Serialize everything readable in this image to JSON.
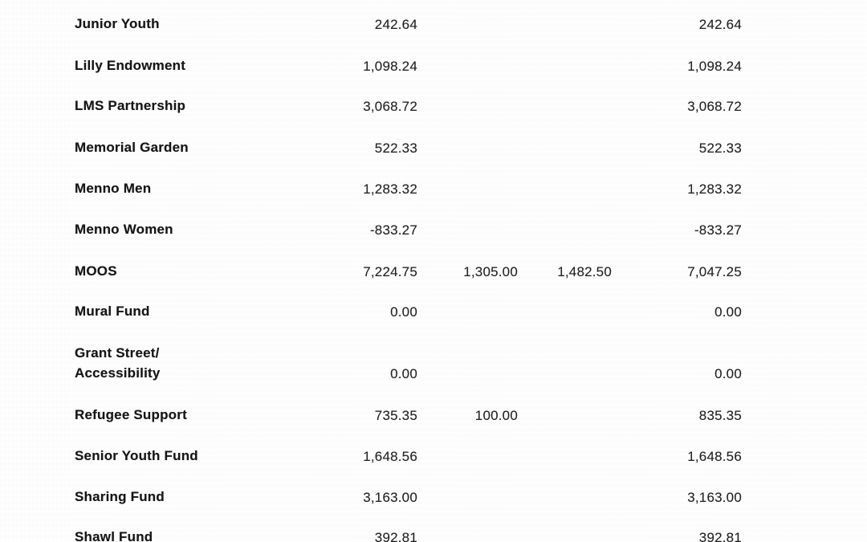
{
  "page": {
    "background_color": "#ffffff",
    "text_color": "#1f1f1f"
  },
  "table": {
    "rows": [
      {
        "name_lines": [
          "Junior Youth"
        ],
        "values": [
          "242.64",
          "",
          "",
          "242.64"
        ]
      },
      {
        "name_lines": [
          "Lilly Endowment"
        ],
        "values": [
          "1,098.24",
          "",
          "",
          "1,098.24"
        ]
      },
      {
        "name_lines": [
          "LMS Partnership"
        ],
        "values": [
          "3,068.72",
          "",
          "",
          "3,068.72"
        ]
      },
      {
        "name_lines": [
          "Memorial Garden"
        ],
        "values": [
          "522.33",
          "",
          "",
          "522.33"
        ]
      },
      {
        "name_lines": [
          "Menno Men"
        ],
        "values": [
          "1,283.32",
          "",
          "",
          "1,283.32"
        ]
      },
      {
        "name_lines": [
          "Menno Women"
        ],
        "values": [
          "-833.27",
          "",
          "",
          "-833.27"
        ]
      },
      {
        "name_lines": [
          "MOOS"
        ],
        "values": [
          "7,224.75",
          "1,305.00",
          "1,482.50",
          "7,047.25"
        ]
      },
      {
        "name_lines": [
          "Mural Fund"
        ],
        "values": [
          "0.00",
          "",
          "",
          "0.00"
        ]
      },
      {
        "name_lines": [
          "Grant Street/",
          "Accessibility"
        ],
        "values": [
          "0.00",
          "",
          "",
          "0.00"
        ]
      },
      {
        "name_lines": [
          "Refugee Support"
        ],
        "values": [
          "735.35",
          "100.00",
          "",
          "835.35"
        ]
      },
      {
        "name_lines": [
          "Senior Youth Fund"
        ],
        "values": [
          "1,648.56",
          "",
          "",
          "1,648.56"
        ]
      },
      {
        "name_lines": [
          "Sharing Fund"
        ],
        "values": [
          "3,163.00",
          "",
          "",
          "3,163.00"
        ]
      },
      {
        "name_lines": [
          "Shawl Fund"
        ],
        "values": [
          "392.81",
          "",
          "",
          "392.81"
        ]
      }
    ]
  }
}
